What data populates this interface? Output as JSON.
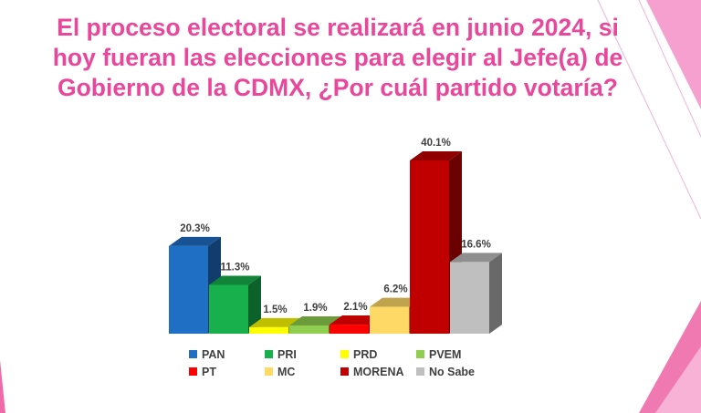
{
  "slide": {
    "title_lines": [
      "El proceso electoral se realizará en junio 2024, si",
      "hoy fueran las elecciones para elegir al Jefe(a) de",
      "Gobierno de la CDMX, ¿Por cuál partido votaría?"
    ],
    "accent_color": "#e8479c"
  },
  "chart_data": {
    "type": "bar",
    "title": "El proceso electoral se realizará en junio 2024, si hoy fueran las elecciones para elegir al Jefe(a) de Gobierno de la CDMX, ¿Por cuál partido votaría?",
    "categories": [
      "PAN",
      "PRI",
      "PRD",
      "PVEM",
      "PT",
      "MC",
      "MORENA",
      "No Sabe"
    ],
    "values": [
      20.3,
      11.3,
      1.5,
      1.9,
      2.1,
      6.2,
      40.1,
      16.6
    ],
    "value_labels": [
      "20.3%",
      "11.3%",
      "1.5%",
      "1.9%",
      "2.1%",
      "6.2%",
      "40.1%",
      "16.6%"
    ],
    "unit": "%",
    "colors": [
      "#1f6fc5",
      "#18b04c",
      "#ffff00",
      "#8fce4f",
      "#ff0000",
      "#ffd966",
      "#c00000",
      "#bfbfbf"
    ],
    "legend": {
      "placement": "bottom",
      "entries": [
        "PAN",
        "PRI",
        "PRD",
        "PVEM",
        "PT",
        "MC",
        "MORENA",
        "No Sabe"
      ]
    },
    "style": "3d-bars",
    "grid": false,
    "axes_visible": false,
    "ylim": [
      0,
      45
    ]
  }
}
